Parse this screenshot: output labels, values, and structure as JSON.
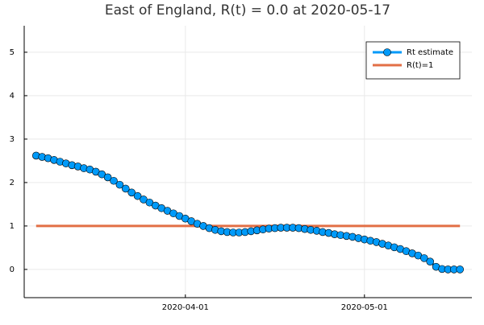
{
  "chart_data": {
    "type": "line",
    "title": "East of England, R(t) = 0.0 at 2020-05-17",
    "x": [
      "2020-03-07",
      "2020-03-08",
      "2020-03-09",
      "2020-03-10",
      "2020-03-11",
      "2020-03-12",
      "2020-03-13",
      "2020-03-14",
      "2020-03-15",
      "2020-03-16",
      "2020-03-17",
      "2020-03-18",
      "2020-03-19",
      "2020-03-20",
      "2020-03-21",
      "2020-03-22",
      "2020-03-23",
      "2020-03-24",
      "2020-03-25",
      "2020-03-26",
      "2020-03-27",
      "2020-03-28",
      "2020-03-29",
      "2020-03-30",
      "2020-03-31",
      "2020-04-01",
      "2020-04-02",
      "2020-04-03",
      "2020-04-04",
      "2020-04-05",
      "2020-04-06",
      "2020-04-07",
      "2020-04-08",
      "2020-04-09",
      "2020-04-10",
      "2020-04-11",
      "2020-04-12",
      "2020-04-13",
      "2020-04-14",
      "2020-04-15",
      "2020-04-16",
      "2020-04-17",
      "2020-04-18",
      "2020-04-19",
      "2020-04-20",
      "2020-04-21",
      "2020-04-22",
      "2020-04-23",
      "2020-04-24",
      "2020-04-25",
      "2020-04-26",
      "2020-04-27",
      "2020-04-28",
      "2020-04-29",
      "2020-04-30",
      "2020-05-01",
      "2020-05-02",
      "2020-05-03",
      "2020-05-04",
      "2020-05-05",
      "2020-05-06",
      "2020-05-07",
      "2020-05-08",
      "2020-05-09",
      "2020-05-10",
      "2020-05-11",
      "2020-05-12",
      "2020-05-13",
      "2020-05-14",
      "2020-05-15",
      "2020-05-16",
      "2020-05-17"
    ],
    "series": [
      {
        "name": "Rt estimate",
        "color": "#009af9",
        "markers": true,
        "values": [
          2.62,
          2.59,
          2.56,
          2.52,
          2.48,
          2.44,
          2.4,
          2.37,
          2.33,
          2.3,
          2.25,
          2.19,
          2.12,
          2.04,
          1.95,
          1.86,
          1.77,
          1.69,
          1.61,
          1.54,
          1.47,
          1.41,
          1.35,
          1.29,
          1.23,
          1.17,
          1.11,
          1.05,
          1.0,
          0.95,
          0.91,
          0.88,
          0.86,
          0.85,
          0.85,
          0.86,
          0.88,
          0.9,
          0.92,
          0.94,
          0.95,
          0.96,
          0.96,
          0.96,
          0.95,
          0.93,
          0.91,
          0.89,
          0.86,
          0.84,
          0.81,
          0.79,
          0.77,
          0.75,
          0.72,
          0.69,
          0.66,
          0.63,
          0.59,
          0.55,
          0.51,
          0.47,
          0.42,
          0.37,
          0.32,
          0.26,
          0.18,
          0.06,
          0.01,
          0.0,
          0.0,
          0.0
        ]
      },
      {
        "name": "R(t)=1",
        "color": "#e26f46",
        "markers": false,
        "x": [
          "2020-03-07",
          "2020-05-17"
        ],
        "values": [
          1,
          1
        ]
      }
    ],
    "xlim": [
      "2020-03-05",
      "2020-05-19"
    ],
    "xticks": [
      "2020-04-01",
      "2020-05-01"
    ],
    "ylim": [
      -0.65,
      5.61
    ],
    "yticks": [
      0,
      1,
      2,
      3,
      4,
      5
    ],
    "grid": true,
    "legend": "top-right"
  }
}
